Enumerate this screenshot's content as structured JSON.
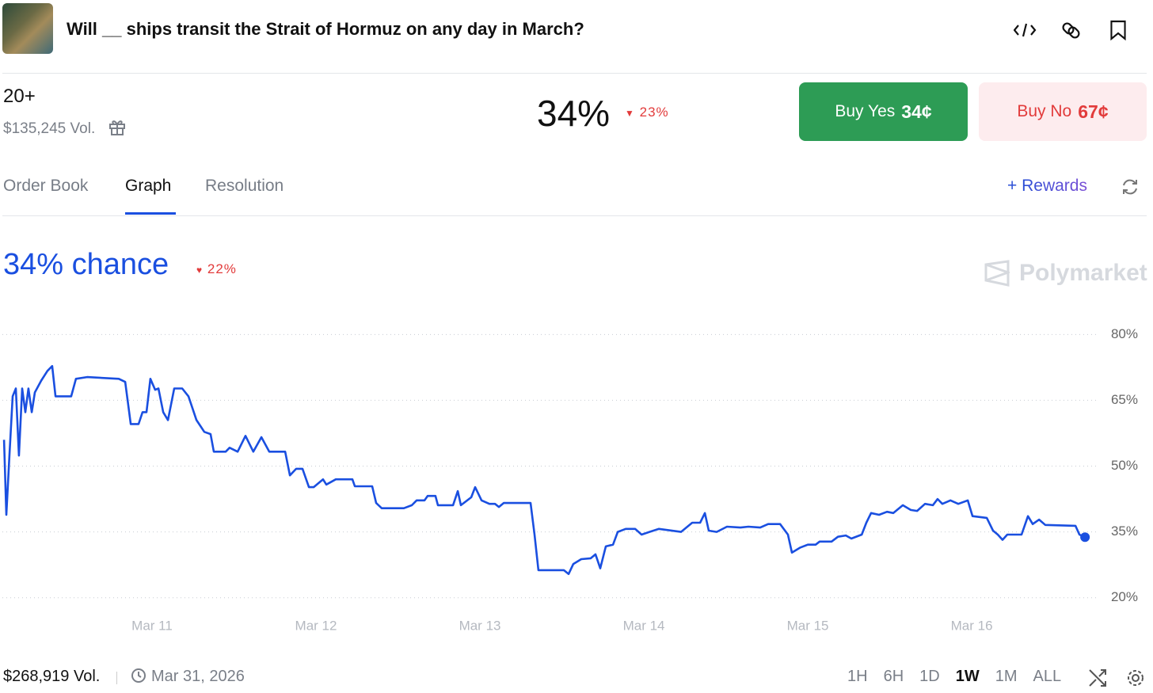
{
  "market": {
    "title": "Will __ ships transit the Strait of Hormuz on any day in March?",
    "outcome": "20+",
    "volume": "$135,245 Vol.",
    "price": "34%",
    "change": "23%",
    "buy_yes": {
      "label": "Buy Yes",
      "price": "34¢"
    },
    "buy_no": {
      "label": "Buy No",
      "price": "67¢"
    }
  },
  "tabs": [
    "Order Book",
    "Graph",
    "Resolution"
  ],
  "active_tab": 1,
  "rewards": "Rewards",
  "watermark": "Polymarket",
  "chart_data": {
    "type": "line",
    "title": "34% chance",
    "change": "22%",
    "series": [
      {
        "name": "Yes",
        "color": "#1a4fe0",
        "x": [
          10.097,
          10.111,
          10.13,
          10.15,
          10.169,
          10.188,
          10.208,
          10.227,
          10.246,
          10.266,
          10.285,
          10.324,
          10.362,
          10.391,
          10.411,
          10.507,
          10.536,
          10.604,
          10.797,
          10.836,
          10.87,
          10.918,
          10.942,
          10.966,
          10.99,
          11.019,
          11.039,
          11.068,
          11.097,
          11.135,
          11.184,
          11.222,
          11.271,
          11.319,
          11.357,
          11.377,
          11.449,
          11.473,
          11.522,
          11.57,
          11.618,
          11.667,
          11.715,
          11.812,
          11.841,
          11.879,
          11.918,
          11.957,
          11.986,
          12.043,
          12.063,
          12.121,
          12.222,
          12.237,
          12.343,
          12.367,
          12.401,
          12.536,
          12.585,
          12.614,
          12.662,
          12.681,
          12.729,
          12.744,
          12.836,
          12.865,
          12.884,
          12.947,
          12.971,
          13.01,
          13.058,
          13.092,
          13.116,
          13.145,
          13.309,
          13.333,
          13.357,
          13.512,
          13.541,
          13.57,
          13.618,
          13.676,
          13.705,
          13.734,
          13.768,
          13.812,
          13.841,
          13.889,
          13.947,
          13.986,
          14.034,
          14.092,
          14.227,
          14.295,
          14.343,
          14.372,
          14.396,
          14.444,
          14.507,
          14.589,
          14.638,
          14.71,
          14.758,
          14.831,
          14.879,
          14.903,
          14.952,
          15.0,
          15.048,
          15.072,
          15.145,
          15.184,
          15.232,
          15.266,
          15.329,
          15.357,
          15.386,
          15.435,
          15.483,
          15.522,
          15.58,
          15.628,
          15.667,
          15.715,
          15.763,
          15.792,
          15.821,
          15.87,
          15.918,
          15.976,
          16.005,
          16.092,
          16.13,
          16.159,
          16.188,
          16.217,
          16.304,
          16.343,
          16.372,
          16.411,
          16.449,
          16.633,
          16.657,
          16.691
        ],
        "values": [
          56.0,
          38.9,
          52.4,
          65.9,
          67.7,
          52.4,
          67.7,
          62.3,
          67.7,
          62.3,
          66.8,
          69.5,
          71.7,
          72.8,
          65.9,
          65.9,
          69.9,
          70.3,
          69.9,
          69.2,
          59.6,
          59.6,
          62.3,
          62.3,
          69.9,
          67.4,
          67.7,
          62.3,
          60.5,
          67.7,
          67.7,
          65.9,
          60.5,
          57.8,
          57.3,
          53.3,
          53.3,
          54.2,
          53.3,
          56.9,
          53.3,
          56.6,
          53.3,
          53.3,
          47.9,
          49.4,
          49.4,
          45.2,
          45.2,
          47.0,
          45.8,
          47.0,
          47.0,
          45.4,
          45.4,
          41.6,
          40.4,
          40.4,
          41.1,
          42.2,
          42.2,
          43.2,
          43.2,
          41.1,
          41.1,
          44.3,
          41.1,
          42.9,
          45.2,
          42.2,
          41.4,
          41.4,
          40.7,
          41.6,
          41.6,
          34.4,
          26.3,
          26.3,
          25.4,
          27.7,
          28.8,
          29.0,
          29.9,
          26.7,
          31.7,
          32.1,
          35.0,
          35.7,
          35.7,
          34.4,
          35.0,
          35.7,
          35.0,
          37.1,
          37.1,
          39.3,
          35.3,
          35.0,
          36.2,
          36.0,
          36.2,
          36.0,
          36.8,
          36.8,
          34.4,
          30.3,
          31.4,
          32.1,
          32.1,
          32.8,
          32.8,
          33.9,
          34.2,
          33.5,
          34.4,
          37.1,
          39.3,
          38.9,
          39.6,
          39.3,
          41.1,
          40.0,
          39.8,
          41.4,
          41.1,
          42.5,
          41.4,
          42.2,
          41.4,
          42.2,
          38.6,
          38.2,
          35.3,
          34.4,
          33.2,
          34.4,
          34.4,
          38.6,
          36.8,
          37.8,
          36.6,
          36.4,
          34.4,
          33.8
        ]
      }
    ],
    "xlim": [
      10.087,
      16.787
    ],
    "xticks": [
      {
        "value": 11,
        "label": "Mar 11"
      },
      {
        "value": 12,
        "label": "Mar 12"
      },
      {
        "value": 13,
        "label": "Mar 13"
      },
      {
        "value": 14,
        "label": "Mar 14"
      },
      {
        "value": 15,
        "label": "Mar 15"
      },
      {
        "value": 16,
        "label": "Mar 16"
      }
    ],
    "ylim": [
      14,
      88
    ],
    "yticks": [
      {
        "value": 20,
        "label": "20%"
      },
      {
        "value": 35,
        "label": "35%"
      },
      {
        "value": 50,
        "label": "50%"
      },
      {
        "value": 65,
        "label": "65%"
      },
      {
        "value": 80,
        "label": "80%"
      }
    ],
    "grid": true
  },
  "footer": {
    "volume": "$268,919 Vol.",
    "end_date": "Mar 31, 2026",
    "ranges": [
      "1H",
      "6H",
      "1D",
      "1W",
      "1M",
      "ALL"
    ],
    "active_range": 3
  }
}
